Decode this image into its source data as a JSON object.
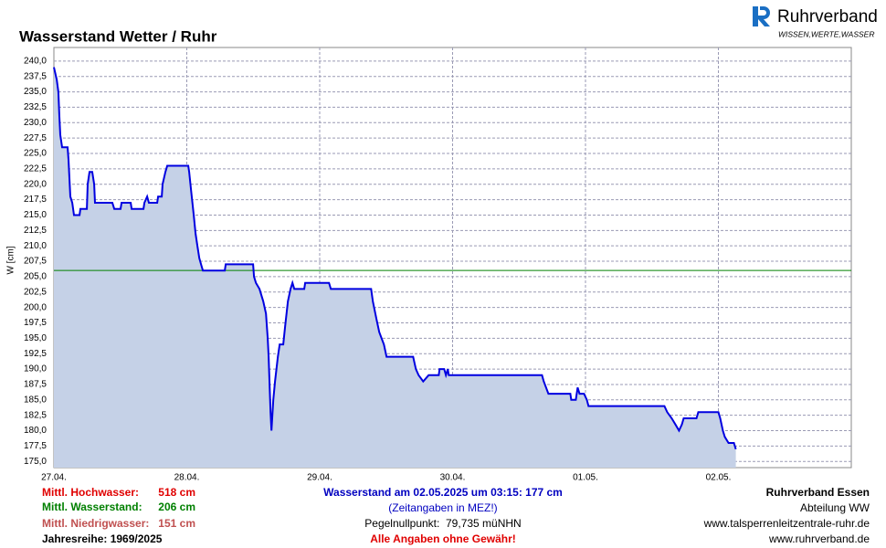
{
  "logo": {
    "name": "Ruhrverband",
    "slogan": "WISSEN,WERTE,WASSER"
  },
  "chart_data": {
    "type": "line",
    "title": "Wasserstand Wetter / Ruhr",
    "y_label": "W [cm]",
    "xlim": [
      0,
      6
    ],
    "ylim": [
      174,
      242.2
    ],
    "grid": true,
    "xticks": [
      {
        "value": 0,
        "label": "27.04."
      },
      {
        "value": 1,
        "label": "28.04."
      },
      {
        "value": 2,
        "label": "29.04."
      },
      {
        "value": 3,
        "label": "30.04."
      },
      {
        "value": 4,
        "label": "01.05."
      },
      {
        "value": 5,
        "label": "02.05."
      }
    ],
    "yticks": [
      {
        "value": 175,
        "label": "175,0"
      },
      {
        "value": 177.5,
        "label": "177,5"
      },
      {
        "value": 180,
        "label": "180,0"
      },
      {
        "value": 182.5,
        "label": "182,5"
      },
      {
        "value": 185,
        "label": "185,0"
      },
      {
        "value": 187.5,
        "label": "187,5"
      },
      {
        "value": 190,
        "label": "190,0"
      },
      {
        "value": 192.5,
        "label": "192,5"
      },
      {
        "value": 195,
        "label": "195,0"
      },
      {
        "value": 197.5,
        "label": "197,5"
      },
      {
        "value": 200,
        "label": "200,0"
      },
      {
        "value": 202.5,
        "label": "202,5"
      },
      {
        "value": 205,
        "label": "205,0"
      },
      {
        "value": 207.5,
        "label": "207,5"
      },
      {
        "value": 210,
        "label": "210,0"
      },
      {
        "value": 212.5,
        "label": "212,5"
      },
      {
        "value": 215,
        "label": "215,0"
      },
      {
        "value": 217.5,
        "label": "217,5"
      },
      {
        "value": 220,
        "label": "220,0"
      },
      {
        "value": 222.5,
        "label": "222,5"
      },
      {
        "value": 225,
        "label": "225,0"
      },
      {
        "value": 227.5,
        "label": "227,5"
      },
      {
        "value": 230,
        "label": "230,0"
      },
      {
        "value": 232.5,
        "label": "232,5"
      },
      {
        "value": 235,
        "label": "235,0"
      },
      {
        "value": 237.5,
        "label": "237,5"
      },
      {
        "value": 240,
        "label": "240,0"
      }
    ],
    "mean_line": {
      "value": 206,
      "color": "#008000"
    },
    "series": [
      {
        "color": "#0000e0",
        "fill": "#c5d1e7",
        "x": [
          0,
          0.021,
          0.034,
          0.041,
          0.048,
          0.062,
          0.103,
          0.11,
          0.124,
          0.138,
          0.151,
          0.193,
          0.199,
          0.248,
          0.254,
          0.268,
          0.289,
          0.303,
          0.309,
          0.44,
          0.454,
          0.502,
          0.509,
          0.578,
          0.585,
          0.674,
          0.681,
          0.702,
          0.715,
          0.777,
          0.784,
          0.812,
          0.818,
          0.839,
          0.853,
          1.011,
          1.018,
          1.032,
          1.052,
          1.066,
          1.08,
          1.094,
          1.107,
          1.121,
          1.286,
          1.293,
          1.499,
          1.506,
          1.52,
          1.547,
          1.575,
          1.596,
          1.609,
          1.616,
          1.63,
          1.637,
          1.651,
          1.664,
          1.685,
          1.699,
          1.726,
          1.74,
          1.761,
          1.781,
          1.795,
          1.809,
          1.884,
          1.891,
          2.07,
          2.084,
          2.387,
          2.4,
          2.428,
          2.448,
          2.483,
          2.503,
          2.703,
          2.724,
          2.744,
          2.779,
          2.82,
          2.896,
          2.902,
          2.937,
          2.95,
          2.964,
          2.971,
          3.673,
          3.686,
          3.721,
          3.886,
          3.893,
          3.927,
          3.941,
          3.955,
          3.989,
          4.01,
          4.023,
          4.594,
          4.615,
          4.649,
          4.677,
          4.704,
          4.725,
          4.739,
          4.835,
          4.849,
          5.0,
          5.014,
          5.034,
          5.048,
          5.076,
          5.117,
          5.131
        ],
        "values": [
          239,
          237,
          235,
          231,
          228,
          226,
          226,
          224,
          218,
          217,
          215,
          215,
          216,
          216,
          220,
          222,
          222,
          220,
          217,
          217,
          216,
          216,
          217,
          217,
          216,
          216,
          217,
          218,
          217,
          217,
          218,
          218,
          220,
          222,
          223,
          223,
          222,
          219,
          215,
          212,
          210,
          208,
          207,
          206,
          206,
          207,
          207,
          205,
          204,
          203,
          201,
          199,
          195,
          192,
          183,
          180,
          185,
          188,
          192,
          194,
          194,
          197,
          201,
          203,
          204,
          203,
          203,
          204,
          204,
          203,
          203,
          201,
          198,
          196,
          194,
          192,
          192,
          190,
          189,
          188,
          189,
          189,
          190,
          190,
          189,
          190,
          189,
          189,
          188,
          186,
          186,
          185,
          185,
          187,
          186,
          186,
          185,
          184,
          184,
          183,
          182,
          181,
          180,
          181,
          182,
          182,
          183,
          183,
          182,
          180,
          179,
          178,
          178,
          177
        ]
      }
    ]
  },
  "footer": {
    "left": [
      {
        "label": "Mittl. Hochwasser:",
        "value": "518 cm"
      },
      {
        "label": "Mittl. Wasserstand:",
        "value": "206 cm"
      },
      {
        "label": "Mittl. Niedrigwasser:",
        "value": "151 cm"
      }
    ],
    "series_years": "Jahresreihe: 1969/2025",
    "center": [
      "Wasserstand am 02.05.2025 um 03:15: 177 cm",
      "(Zeitangaben in MEZ!)",
      "Pegelnullpunkt:  79,735 müNHN",
      "Alle Angaben ohne Gewähr!"
    ],
    "right": [
      "Ruhrverband Essen",
      "Abteilung WW",
      "www.talsperrenleitzentrale-ruhr.de",
      "www.ruhrverband.de"
    ]
  }
}
